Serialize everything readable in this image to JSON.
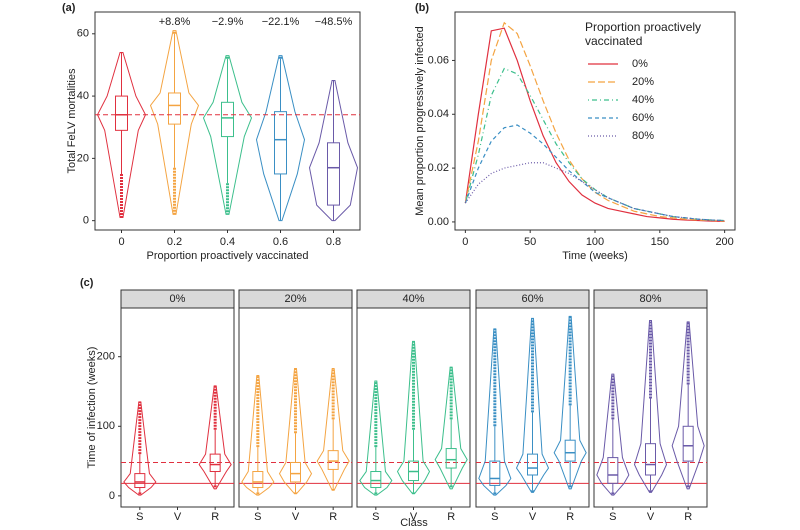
{
  "chart_data": [
    {
      "type": "violin",
      "panel_label": "(a)",
      "xlabel": "Proportion proactively vaccinated",
      "ylabel": "Total FeLV mortalities",
      "categories": [
        "0",
        "0.2",
        "0.4",
        "0.6",
        "0.8"
      ],
      "colors": [
        "#e0303f",
        "#f4a442",
        "#3cbf8c",
        "#3a8fc4",
        "#6a5aa8"
      ],
      "boxes": [
        {
          "min": 1,
          "low": 15,
          "q1": 29,
          "median": 34,
          "q3": 40,
          "high": 54,
          "max": 54
        },
        {
          "min": 2,
          "low": 17,
          "q1": 31,
          "median": 37,
          "q3": 41,
          "high": 60,
          "max": 61
        },
        {
          "min": 2,
          "low": 12,
          "q1": 27,
          "median": 33,
          "q3": 38,
          "high": 52,
          "max": 53
        },
        {
          "min": 0,
          "low": 0,
          "q1": 15,
          "median": 26,
          "q3": 35,
          "high": 52,
          "max": 53
        },
        {
          "min": 0,
          "low": 0,
          "q1": 5,
          "median": 17,
          "q3": 25,
          "high": 45,
          "max": 45
        }
      ],
      "annotations": [
        "+8.8%",
        "−2.9%",
        "−22.1%",
        "−48.5%"
      ],
      "reference_line": 34,
      "ylim": [
        -3,
        67
      ],
      "yticks": [
        0,
        20,
        40,
        60
      ]
    },
    {
      "type": "line",
      "panel_label": "(b)",
      "xlabel": "Time (weeks)",
      "ylabel": "Mean proportion progressively infected",
      "legend_title": "Proportion proactively vaccinated",
      "legend": "top-right",
      "x": [
        0,
        10,
        20,
        30,
        40,
        50,
        60,
        70,
        80,
        90,
        100,
        110,
        120,
        130,
        140,
        150,
        160,
        170,
        180,
        190,
        200
      ],
      "series": [
        {
          "name": "0%",
          "color": "#e0303f",
          "dash": "solid",
          "values": [
            0.007,
            0.04,
            0.071,
            0.072,
            0.06,
            0.045,
            0.032,
            0.022,
            0.015,
            0.01,
            0.007,
            0.005,
            0.004,
            0.003,
            0.002,
            0.0015,
            0.001,
            0.0007,
            0.0005,
            0.0003,
            0.0002
          ]
        },
        {
          "name": "20%",
          "color": "#f4a442",
          "dash": "longdash",
          "values": [
            0.007,
            0.03,
            0.06,
            0.074,
            0.07,
            0.058,
            0.045,
            0.033,
            0.023,
            0.016,
            0.011,
            0.008,
            0.006,
            0.004,
            0.003,
            0.002,
            0.0015,
            0.001,
            0.0007,
            0.0005,
            0.0003
          ]
        },
        {
          "name": "40%",
          "color": "#3cbf8c",
          "dash": "dotdash",
          "values": [
            0.007,
            0.025,
            0.047,
            0.057,
            0.055,
            0.047,
            0.038,
            0.029,
            0.022,
            0.016,
            0.012,
            0.009,
            0.007,
            0.005,
            0.004,
            0.003,
            0.002,
            0.0015,
            0.001,
            0.0007,
            0.0005
          ]
        },
        {
          "name": "60%",
          "color": "#3a8fc4",
          "dash": "dashed",
          "values": [
            0.007,
            0.02,
            0.03,
            0.035,
            0.036,
            0.033,
            0.029,
            0.024,
            0.019,
            0.015,
            0.011,
            0.009,
            0.007,
            0.005,
            0.004,
            0.003,
            0.002,
            0.0015,
            0.001,
            0.0007,
            0.0005
          ]
        },
        {
          "name": "80%",
          "color": "#6a5aa8",
          "dash": "dotted",
          "values": [
            0.007,
            0.014,
            0.018,
            0.02,
            0.021,
            0.022,
            0.022,
            0.02,
            0.018,
            0.015,
            0.012,
            0.009,
            0.007,
            0.005,
            0.004,
            0.003,
            0.002,
            0.0015,
            0.001,
            0.0007,
            0.0005
          ]
        }
      ],
      "xlim": [
        -8,
        208
      ],
      "xticks": [
        0,
        50,
        100,
        150,
        200
      ],
      "ylim": [
        -0.003,
        0.078
      ],
      "yticks": [
        {
          "value": 0,
          "label": "0.00"
        },
        {
          "value": 0.02,
          "label": "0.02"
        },
        {
          "value": 0.04,
          "label": "0.04"
        },
        {
          "value": 0.06,
          "label": "0.06"
        }
      ]
    },
    {
      "type": "facet_violin",
      "panel_label": "(c)",
      "xlabel": "Class",
      "ylabel": "Time of infection (weeks)",
      "categories": [
        "S",
        "V",
        "R"
      ],
      "reference_lines": [
        {
          "value": 18,
          "style": "solid"
        },
        {
          "value": 48,
          "style": "dashed"
        }
      ],
      "reference_color": "#e0303f",
      "facets": [
        {
          "title": "0%",
          "color": "#e0303f",
          "boxes": [
            {
              "min": 1,
              "low": 5,
              "q1": 12,
              "median": 20,
              "q3": 32,
              "high": 60,
              "max": 135
            },
            null,
            {
              "min": 10,
              "low": 15,
              "q1": 35,
              "median": 45,
              "q3": 60,
              "high": 95,
              "max": 158
            }
          ]
        },
        {
          "title": "20%",
          "color": "#f4a442",
          "boxes": [
            {
              "min": 1,
              "low": 5,
              "q1": 12,
              "median": 20,
              "q3": 35,
              "high": 70,
              "max": 173
            },
            {
              "min": 3,
              "low": 5,
              "q1": 20,
              "median": 32,
              "q3": 48,
              "high": 90,
              "max": 183
            },
            {
              "min": 8,
              "low": 10,
              "q1": 38,
              "median": 50,
              "q3": 65,
              "high": 110,
              "max": 183
            }
          ]
        },
        {
          "title": "40%",
          "color": "#3cbf8c",
          "boxes": [
            {
              "min": 1,
              "low": 5,
              "q1": 12,
              "median": 22,
              "q3": 35,
              "high": 70,
              "max": 165
            },
            {
              "min": 3,
              "low": 5,
              "q1": 22,
              "median": 35,
              "q3": 50,
              "high": 95,
              "max": 222
            },
            {
              "min": 10,
              "low": 15,
              "q1": 40,
              "median": 52,
              "q3": 68,
              "high": 110,
              "max": 185
            }
          ]
        },
        {
          "title": "60%",
          "color": "#3a8fc4",
          "boxes": [
            {
              "min": 1,
              "low": 5,
              "q1": 15,
              "median": 25,
              "q3": 50,
              "high": 100,
              "max": 240
            },
            {
              "min": 5,
              "low": 8,
              "q1": 30,
              "median": 40,
              "q3": 60,
              "high": 120,
              "max": 255
            },
            {
              "min": 10,
              "low": 15,
              "q1": 50,
              "median": 62,
              "q3": 80,
              "high": 130,
              "max": 258
            }
          ]
        },
        {
          "title": "80%",
          "color": "#6a5aa8",
          "boxes": [
            {
              "min": 1,
              "low": 5,
              "q1": 18,
              "median": 30,
              "q3": 55,
              "high": 110,
              "max": 175
            },
            {
              "min": 5,
              "low": 8,
              "q1": 30,
              "median": 45,
              "q3": 75,
              "high": 140,
              "max": 252
            },
            {
              "min": 10,
              "low": 15,
              "q1": 50,
              "median": 72,
              "q3": 100,
              "high": 160,
              "max": 250
            }
          ]
        }
      ],
      "ylim": [
        -16,
        270
      ],
      "yticks": [
        0,
        100,
        200
      ]
    }
  ]
}
